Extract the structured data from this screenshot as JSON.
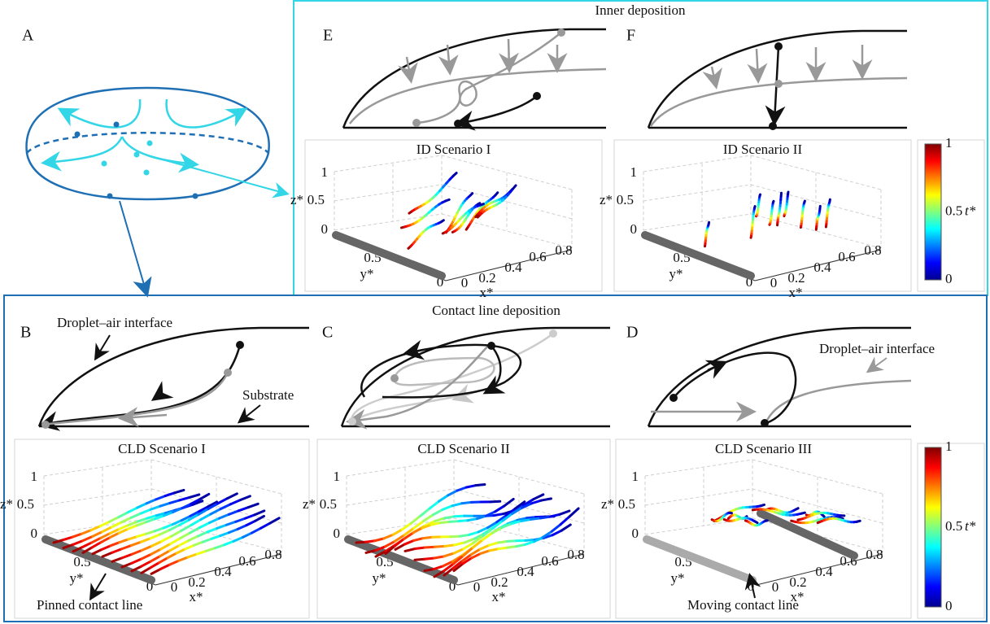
{
  "figure": {
    "sections": [
      "Inner deposition",
      "Contact line deposition"
    ],
    "panel_labels": [
      "A",
      "B",
      "C",
      "D",
      "E",
      "F"
    ],
    "annotations": [
      "Droplet–air interface",
      "Substrate",
      "Pinned contact line",
      "Droplet–air interface",
      "Moving contact line"
    ],
    "plots": [
      {
        "title": "ID Scenario I",
        "z_label": "z*",
        "y_label": "y*",
        "x_label": "x*",
        "z_ticks": [
          "0",
          "0.5",
          "1"
        ],
        "y_ticks": [
          "0",
          "0.5"
        ],
        "x_ticks": [
          "0",
          "0.2",
          "0.4",
          "0.6",
          "0.8"
        ]
      },
      {
        "title": "ID Scenario II",
        "z_label": "z*",
        "y_label": "y*",
        "x_label": "x*",
        "z_ticks": [
          "0",
          "0.5",
          "1"
        ],
        "y_ticks": [
          "0",
          "0.5"
        ],
        "x_ticks": [
          "0",
          "0.2",
          "0.4",
          "0.6",
          "0.8"
        ]
      },
      {
        "title": "CLD Scenario I",
        "z_label": "z*",
        "y_label": "y*",
        "x_label": "x*",
        "z_ticks": [
          "0",
          "0.5",
          "1"
        ],
        "y_ticks": [
          "0",
          "0.5"
        ],
        "x_ticks": [
          "0",
          "0.2",
          "0.4",
          "0.6",
          "0.8"
        ]
      },
      {
        "title": "CLD Scenario II",
        "z_label": "z*",
        "y_label": "y*",
        "x_label": "x*",
        "z_ticks": [
          "0",
          "0.5",
          "1"
        ],
        "y_ticks": [
          "0",
          "0.5"
        ],
        "x_ticks": [
          "0",
          "0.2",
          "0.4",
          "0.6",
          "0.8"
        ]
      },
      {
        "title": "CLD Scenario III",
        "z_label": "z*",
        "y_label": "y*",
        "x_label": "x*",
        "z_ticks": [
          "0",
          "0.5",
          "1"
        ],
        "y_ticks": [
          "0",
          "0.5"
        ],
        "x_ticks": [
          "0",
          "0.2",
          "0.4",
          "0.6",
          "0.8"
        ]
      }
    ],
    "colorbars": [
      {
        "ticks": [
          "0",
          "0.5",
          "1"
        ],
        "label": "t*"
      },
      {
        "ticks": [
          "0",
          "0.5",
          "1"
        ],
        "label": "t*"
      }
    ]
  }
}
